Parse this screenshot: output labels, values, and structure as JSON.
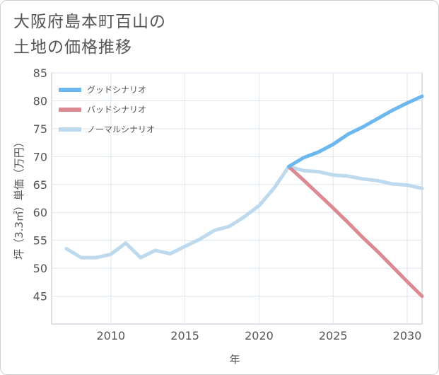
{
  "title_line1": "大阪府島本町百山の",
  "title_line2": "土地の価格推移",
  "chart_data": {
    "type": "line",
    "xlabel": "年",
    "ylabel": "坪（3.3㎡）単価（万円）",
    "xlim": [
      2006,
      2031
    ],
    "ylim": [
      40,
      85
    ],
    "x_ticks": [
      2010,
      2015,
      2020,
      2025,
      2030
    ],
    "y_ticks": [
      45,
      50,
      55,
      60,
      65,
      70,
      75,
      80,
      85
    ],
    "grid": true,
    "legend_position": "top-left",
    "series": [
      {
        "name": "グッドシナリオ",
        "color": "#6cb8ee",
        "x": [
          2022,
          2023,
          2024,
          2025,
          2026,
          2027,
          2028,
          2029,
          2030,
          2031
        ],
        "y": [
          68.2,
          69.8,
          70.8,
          72.2,
          74.0,
          75.3,
          76.8,
          78.3,
          79.6,
          80.8
        ]
      },
      {
        "name": "バッドシナリオ",
        "color": "#db8a93",
        "x": [
          2022,
          2023,
          2024,
          2025,
          2026,
          2027,
          2028,
          2029,
          2030,
          2031
        ],
        "y": [
          68.2,
          65.8,
          63.3,
          60.8,
          58.2,
          55.5,
          53.0,
          50.3,
          47.6,
          45.0
        ]
      },
      {
        "name": "ノーマルシナリオ",
        "color": "#bcd9ee",
        "x": [
          2007,
          2008,
          2009,
          2010,
          2011,
          2012,
          2013,
          2014,
          2015,
          2016,
          2017,
          2018,
          2019,
          2020,
          2021,
          2022,
          2023,
          2024,
          2025,
          2026,
          2027,
          2028,
          2029,
          2030,
          2031
        ],
        "y": [
          53.5,
          51.9,
          51.9,
          52.5,
          54.5,
          51.9,
          53.2,
          52.6,
          53.9,
          55.2,
          56.8,
          57.5,
          59.2,
          61.2,
          64.3,
          68.2,
          67.5,
          67.3,
          66.7,
          66.5,
          66.0,
          65.7,
          65.1,
          64.9,
          64.3
        ]
      }
    ]
  }
}
